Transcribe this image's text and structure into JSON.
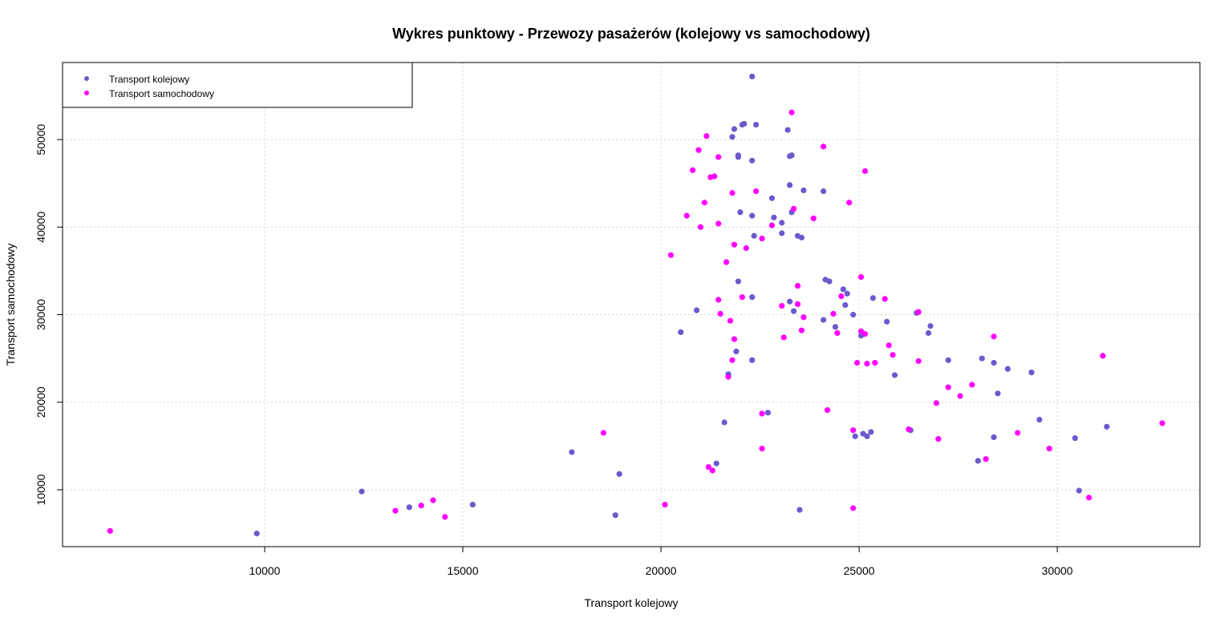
{
  "chart_data": {
    "type": "scatter",
    "title": "Wykres punktowy - Przewozy pasażerów (kolejowy vs samochodowy)",
    "xlabel": "Transport kolejowy",
    "ylabel": "Transport samochodowy",
    "xlim": [
      4900,
      33600
    ],
    "ylim": [
      3500,
      58800
    ],
    "x_ticks": [
      10000,
      15000,
      20000,
      25000,
      30000
    ],
    "y_ticks": [
      10000,
      20000,
      30000,
      40000,
      50000
    ],
    "grid": true,
    "legend_position": "top-left",
    "series": [
      {
        "name": "Transport kolejowy",
        "color": "#6a5acd",
        "points": [
          [
            9800,
            5000
          ],
          [
            12450,
            9800
          ],
          [
            13650,
            8000
          ],
          [
            15250,
            8300
          ],
          [
            17750,
            14300
          ],
          [
            18850,
            7100
          ],
          [
            18950,
            11800
          ],
          [
            20500,
            28000
          ],
          [
            20900,
            30500
          ],
          [
            21400,
            13000
          ],
          [
            21600,
            17700
          ],
          [
            21700,
            23200
          ],
          [
            21900,
            25800
          ],
          [
            21800,
            50300
          ],
          [
            21850,
            51200
          ],
          [
            21950,
            48200
          ],
          [
            21950,
            48000
          ],
          [
            21950,
            33800
          ],
          [
            22000,
            41700
          ],
          [
            22050,
            51700
          ],
          [
            22100,
            51800
          ],
          [
            22300,
            57200
          ],
          [
            22300,
            47600
          ],
          [
            22300,
            41300
          ],
          [
            22350,
            39000
          ],
          [
            22300,
            32000
          ],
          [
            22300,
            24800
          ],
          [
            22400,
            51700
          ],
          [
            22700,
            18800
          ],
          [
            22800,
            43300
          ],
          [
            22850,
            41100
          ],
          [
            23050,
            39300
          ],
          [
            23050,
            40500
          ],
          [
            23200,
            51100
          ],
          [
            23250,
            44800
          ],
          [
            23250,
            48100
          ],
          [
            23300,
            48200
          ],
          [
            23300,
            41700
          ],
          [
            23250,
            31500
          ],
          [
            23350,
            30400
          ],
          [
            23450,
            39000
          ],
          [
            23550,
            38800
          ],
          [
            23600,
            44200
          ],
          [
            23500,
            7700
          ],
          [
            24100,
            44100
          ],
          [
            24150,
            34000
          ],
          [
            24250,
            33800
          ],
          [
            24100,
            29400
          ],
          [
            24400,
            28600
          ],
          [
            24600,
            32900
          ],
          [
            24700,
            32400
          ],
          [
            24650,
            31100
          ],
          [
            24850,
            30000
          ],
          [
            24900,
            16100
          ],
          [
            25050,
            27600
          ],
          [
            25100,
            16400
          ],
          [
            25200,
            16100
          ],
          [
            25300,
            16600
          ],
          [
            25350,
            31900
          ],
          [
            25700,
            29200
          ],
          [
            25900,
            23100
          ],
          [
            26300,
            16800
          ],
          [
            26450,
            30200
          ],
          [
            26750,
            27900
          ],
          [
            26800,
            28700
          ],
          [
            27250,
            24800
          ],
          [
            28000,
            13300
          ],
          [
            28100,
            25000
          ],
          [
            28400,
            24500
          ],
          [
            28400,
            16000
          ],
          [
            28500,
            21000
          ],
          [
            28750,
            23800
          ],
          [
            29350,
            23400
          ],
          [
            29550,
            18000
          ],
          [
            30450,
            15900
          ],
          [
            30550,
            9900
          ],
          [
            31250,
            17200
          ]
        ]
      },
      {
        "name": "Transport samochodowy",
        "color": "#ff00ff",
        "points": [
          [
            6100,
            5300
          ],
          [
            13300,
            7600
          ],
          [
            13950,
            8200
          ],
          [
            14250,
            8800
          ],
          [
            14550,
            6900
          ],
          [
            18550,
            16500
          ],
          [
            20100,
            8300
          ],
          [
            20250,
            36800
          ],
          [
            20650,
            41300
          ],
          [
            20800,
            46500
          ],
          [
            20950,
            48800
          ],
          [
            21000,
            40000
          ],
          [
            21100,
            42800
          ],
          [
            21150,
            50400
          ],
          [
            21200,
            12600
          ],
          [
            21250,
            45700
          ],
          [
            21300,
            12200
          ],
          [
            21350,
            45800
          ],
          [
            21450,
            31700
          ],
          [
            21450,
            40400
          ],
          [
            21450,
            48000
          ],
          [
            21500,
            30100
          ],
          [
            21650,
            36000
          ],
          [
            21700,
            22900
          ],
          [
            21750,
            29300
          ],
          [
            21800,
            24800
          ],
          [
            21800,
            43900
          ],
          [
            21850,
            38000
          ],
          [
            21850,
            27200
          ],
          [
            22050,
            32000
          ],
          [
            22150,
            37600
          ],
          [
            22400,
            44100
          ],
          [
            22550,
            38700
          ],
          [
            22550,
            18700
          ],
          [
            22550,
            14700
          ],
          [
            22800,
            40200
          ],
          [
            23050,
            31000
          ],
          [
            23100,
            27400
          ],
          [
            23300,
            53100
          ],
          [
            23350,
            42100
          ],
          [
            23450,
            31200
          ],
          [
            23450,
            33300
          ],
          [
            23550,
            28200
          ],
          [
            23600,
            29700
          ],
          [
            23850,
            41000
          ],
          [
            24100,
            49200
          ],
          [
            24200,
            19100
          ],
          [
            24350,
            30100
          ],
          [
            24450,
            27900
          ],
          [
            24550,
            32100
          ],
          [
            24750,
            42800
          ],
          [
            24850,
            7900
          ],
          [
            24850,
            16800
          ],
          [
            24950,
            24500
          ],
          [
            25050,
            34300
          ],
          [
            25050,
            28100
          ],
          [
            25150,
            46400
          ],
          [
            25150,
            27800
          ],
          [
            25200,
            24400
          ],
          [
            25400,
            24500
          ],
          [
            25650,
            31800
          ],
          [
            25750,
            26500
          ],
          [
            25850,
            25400
          ],
          [
            26250,
            16900
          ],
          [
            26500,
            24700
          ],
          [
            26500,
            30300
          ],
          [
            26950,
            19900
          ],
          [
            27000,
            15800
          ],
          [
            27250,
            21700
          ],
          [
            27550,
            20700
          ],
          [
            27850,
            22000
          ],
          [
            28200,
            13500
          ],
          [
            28400,
            27500
          ],
          [
            29000,
            16500
          ],
          [
            29800,
            14700
          ],
          [
            30800,
            9100
          ],
          [
            31150,
            25300
          ],
          [
            32650,
            17600
          ]
        ]
      }
    ]
  }
}
